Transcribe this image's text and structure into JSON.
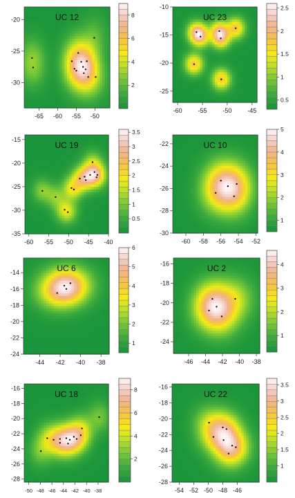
{
  "chart_data": [
    {
      "type": "heatmap",
      "title": "UC 12",
      "xlim": [
        -69,
        -46
      ],
      "ylim": [
        -34,
        -18
      ],
      "xticks": [
        -65,
        -60,
        -55,
        -50
      ],
      "yticks": [
        -20,
        -25,
        -30
      ],
      "colorbar": {
        "min": 0,
        "max": 9,
        "ticks": [
          2,
          4,
          6,
          8
        ]
      },
      "peak_value": 9,
      "spread": 2.2,
      "points": [
        [
          -54.5,
          -25.3
        ],
        [
          -53.7,
          -26.7
        ],
        [
          -53.2,
          -27.5
        ],
        [
          -52.2,
          -26.6
        ],
        [
          -52.5,
          -27.9
        ],
        [
          -51.8,
          -29.1
        ],
        [
          -56.2,
          -26.6
        ],
        [
          -55.0,
          -28.1
        ],
        [
          -49.8,
          -29.1
        ],
        [
          -50.2,
          -22.9
        ],
        [
          -66.9,
          -26.1
        ],
        [
          -66.6,
          -27.6
        ],
        [
          -55.5,
          -27.8
        ],
        [
          -53.0,
          -28.5
        ]
      ]
    },
    {
      "type": "heatmap",
      "title": "UC 23",
      "xlim": [
        -61,
        -44
      ],
      "ylim": [
        -27,
        -10
      ],
      "xticks": [
        -60,
        -55,
        -50,
        -45
      ],
      "yticks": [
        -10,
        -15,
        -20,
        -25
      ],
      "colorbar": {
        "min": 0.3,
        "max": 2.6,
        "ticks": [
          0.5,
          1.0,
          1.5,
          2.0,
          2.5
        ]
      },
      "peak_value": 2.6,
      "spread": 1.2,
      "points": [
        [
          -56.2,
          -14.5
        ],
        [
          -55.4,
          -15.3
        ],
        [
          -51.6,
          -14.3
        ],
        [
          -51.3,
          -15.6
        ],
        [
          -48.3,
          -13.8
        ],
        [
          -56.7,
          -20.2
        ],
        [
          -51.2,
          -22.9
        ]
      ]
    },
    {
      "type": "heatmap",
      "title": "UC 19",
      "xlim": [
        -61,
        -40
      ],
      "ylim": [
        -35,
        -14
      ],
      "xticks": [
        -60,
        -55,
        -50,
        -45,
        -40
      ],
      "yticks": [
        -15,
        -20,
        -25,
        -30,
        -35
      ],
      "colorbar": {
        "min": 0,
        "max": 3.6,
        "ticks": [
          0.5,
          1.0,
          1.5,
          2.0,
          2.5,
          3.0,
          3.5
        ]
      },
      "peak_value": 3.6,
      "spread": 1.6,
      "points": [
        [
          -49.3,
          -25.3
        ],
        [
          -48.7,
          -25.6
        ],
        [
          -44.6,
          -22.5
        ],
        [
          -43.5,
          -21.9
        ],
        [
          -42.8,
          -22.5
        ],
        [
          -44.0,
          -19.8
        ],
        [
          -43.0,
          -23.0
        ],
        [
          -45.7,
          -23.6
        ],
        [
          -56.6,
          -25.9
        ],
        [
          -53.3,
          -27.2
        ],
        [
          -51.0,
          -29.9
        ],
        [
          -50.2,
          -30.4
        ],
        [
          -46.0,
          -22.9
        ],
        [
          -47.2,
          -23.3
        ]
      ]
    },
    {
      "type": "heatmap",
      "title": "UC 10",
      "xlim": [
        -61.5,
        -51.8
      ],
      "ylim": [
        -30,
        -21.2
      ],
      "xticks": [
        -60,
        -58,
        -56,
        -54,
        -52
      ],
      "yticks": [
        -22,
        -24,
        -26,
        -28,
        -30
      ],
      "colorbar": {
        "min": 0.5,
        "max": 5,
        "ticks": [
          1,
          2,
          3,
          4,
          5
        ]
      },
      "peak_value": 5,
      "spread": 1.3,
      "points": [
        [
          -56.0,
          -25.3
        ],
        [
          -55.2,
          -25.8
        ],
        [
          -54.2,
          -25.6
        ],
        [
          -54.5,
          -26.7
        ],
        [
          -56.6,
          -26.4
        ]
      ]
    },
    {
      "type": "heatmap",
      "title": "UC 6",
      "xlim": [
        -45.6,
        -37.2
      ],
      "ylim": [
        -24,
        -12.2
      ],
      "xticks": [
        -44,
        -42,
        -40,
        -38
      ],
      "yticks": [
        -14,
        -16,
        -18,
        -20,
        -22,
        -24
      ],
      "colorbar": {
        "min": 0.5,
        "max": 6,
        "ticks": [
          1,
          2,
          3,
          4,
          5,
          6
        ]
      },
      "peak_value": 6,
      "spread": 1.4,
      "points": [
        [
          -41.6,
          -15.6
        ],
        [
          -41.0,
          -15.3
        ],
        [
          -41.4,
          -16.0
        ],
        [
          -42.3,
          -16.5
        ]
      ]
    },
    {
      "type": "heatmap",
      "title": "UC 2",
      "xlim": [
        -47.8,
        -37.6
      ],
      "ylim": [
        -25.2,
        -15.4
      ],
      "xticks": [
        -46,
        -44,
        -42,
        -40,
        -38
      ],
      "yticks": [
        -16,
        -18,
        -20,
        -22,
        -24
      ],
      "colorbar": {
        "min": 0.3,
        "max": 4.6,
        "ticks": [
          1,
          2,
          3,
          4
        ]
      },
      "peak_value": 4.6,
      "spread": 1.4,
      "points": [
        [
          -43.2,
          -19.6
        ],
        [
          -42.7,
          -20.4
        ],
        [
          -43.6,
          -20.8
        ],
        [
          -40.5,
          -19.6
        ],
        [
          -42.1,
          -21.4
        ]
      ]
    },
    {
      "type": "heatmap",
      "title": "UC 18",
      "xlim": [
        -50.8,
        -36.2
      ],
      "ylim": [
        -28.4,
        -15.4
      ],
      "xticks": [
        -50,
        -48,
        -46,
        -44,
        -42,
        -40,
        -38
      ],
      "xtick_labels": [
        "-50",
        "-48",
        "-46",
        "-44",
        "-42",
        "-40",
        "-38"
      ],
      "yticks": [
        -16,
        -18,
        -20,
        -22,
        -24,
        -26,
        -28
      ],
      "colorbar": {
        "min": 0,
        "max": 9,
        "ticks": [
          2,
          4,
          6,
          8
        ]
      },
      "peak_value": 9,
      "spread": 1.3,
      "points": [
        [
          -46.8,
          -22.6
        ],
        [
          -45.7,
          -22.8
        ],
        [
          -44.6,
          -22.7
        ],
        [
          -43.5,
          -22.6
        ],
        [
          -42.9,
          -22.8
        ],
        [
          -42.2,
          -22.4
        ],
        [
          -41.7,
          -22.7
        ],
        [
          -41.0,
          -22.2
        ],
        [
          -40.8,
          -21.3
        ],
        [
          -44.6,
          -23.2
        ],
        [
          -43.2,
          -23.3
        ],
        [
          -47.9,
          -24.3
        ],
        [
          -37.8,
          -19.8
        ]
      ]
    },
    {
      "type": "heatmap",
      "title": "UC 22",
      "xlim": [
        -55,
        -43
      ],
      "ylim": [
        -28,
        -15.6
      ],
      "xticks": [
        -54,
        -52,
        -50,
        -48,
        -46
      ],
      "yticks": [
        -16,
        -18,
        -20,
        -22,
        -24,
        -26,
        -28
      ],
      "colorbar": {
        "min": 0.5,
        "max": 3.7,
        "ticks": [
          1.0,
          1.5,
          2.0,
          2.5,
          3.0,
          3.5
        ]
      },
      "peak_value": 3.7,
      "spread": 1.4,
      "points": [
        [
          -49.9,
          -20.5
        ],
        [
          -49.3,
          -22.3
        ],
        [
          -48.0,
          -21.1
        ],
        [
          -47.5,
          -21.3
        ],
        [
          -47.9,
          -22.7
        ],
        [
          -46.7,
          -23.4
        ],
        [
          -46.2,
          -23.6
        ],
        [
          -47.2,
          -24.4
        ]
      ]
    }
  ]
}
